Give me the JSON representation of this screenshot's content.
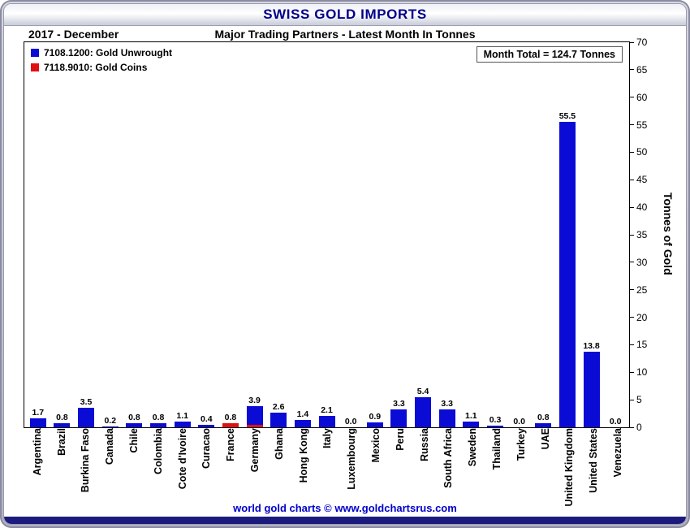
{
  "title": "SWISS GOLD IMPORTS",
  "period": "2017 - December",
  "subtitle": "Major Trading Partners - Latest Month In Tonnes",
  "month_total": "Month Total = 124.7 Tonnes",
  "ylabel": "Tonnes of Gold",
  "footer": "world gold charts © www.goldchartsrus.com",
  "colors": {
    "unwrought": "#0b0bd6",
    "coins": "#e01010",
    "title_navy": "#00008b",
    "footer_blue": "#0000cc"
  },
  "legend": [
    {
      "label": "7108.1200: Gold Unwrought",
      "color": "#0b0bd6"
    },
    {
      "label": "7118.9010: Gold Coins",
      "color": "#e01010"
    }
  ],
  "chart_data": {
    "type": "bar",
    "stacked": true,
    "title": "Swiss Gold Imports - Major Trading Partners - Latest Month In Tonnes (2017 - December)",
    "xlabel": "",
    "ylabel": "Tonnes of Gold",
    "ylim": [
      0,
      70
    ],
    "yticks": [
      0,
      5,
      10,
      15,
      20,
      25,
      30,
      35,
      40,
      45,
      50,
      55,
      60,
      65,
      70
    ],
    "grid": false,
    "legend_position": "top-left",
    "categories": [
      "Argentina",
      "Brazil",
      "Burkina Faso",
      "Canada",
      "Chile",
      "Colombia",
      "Cote d'Ivoire",
      "Curacao",
      "France",
      "Germany",
      "Ghana",
      "Hong Kong",
      "Italy",
      "Luxembourg",
      "Mexico",
      "Peru",
      "Russia",
      "South Africa",
      "Sweden",
      "Thailand",
      "Turkey",
      "UAE",
      "United Kingdom",
      "United States",
      "Venezuela"
    ],
    "series": [
      {
        "name": "7108.1200: Gold Unwrought",
        "color": "#0b0bd6",
        "values": [
          1.7,
          0.8,
          3.5,
          0.2,
          0.8,
          0.8,
          1.1,
          0.4,
          0.0,
          3.5,
          2.6,
          1.4,
          2.1,
          0.0,
          0.9,
          3.3,
          5.4,
          3.3,
          1.1,
          0.3,
          0.0,
          0.8,
          55.5,
          13.8,
          0.0
        ]
      },
      {
        "name": "7118.9010: Gold Coins",
        "color": "#e01010",
        "values": [
          0,
          0,
          0,
          0,
          0,
          0,
          0,
          0,
          0.8,
          0.4,
          0,
          0,
          0,
          0,
          0,
          0,
          0,
          0,
          0,
          0,
          0,
          0,
          0,
          0,
          0
        ]
      }
    ],
    "total_labels": [
      "1.7",
      "0.8",
      "3.5",
      "0.2",
      "0.8",
      "0.8",
      "1.1",
      "0.4",
      "0.8",
      "3.9",
      "2.6",
      "1.4",
      "2.1",
      "0.0",
      "0.9",
      "3.3",
      "5.4",
      "3.3",
      "1.1",
      "0.3",
      "0.0",
      "0.8",
      "55.5",
      "13.8",
      "0.0"
    ]
  }
}
